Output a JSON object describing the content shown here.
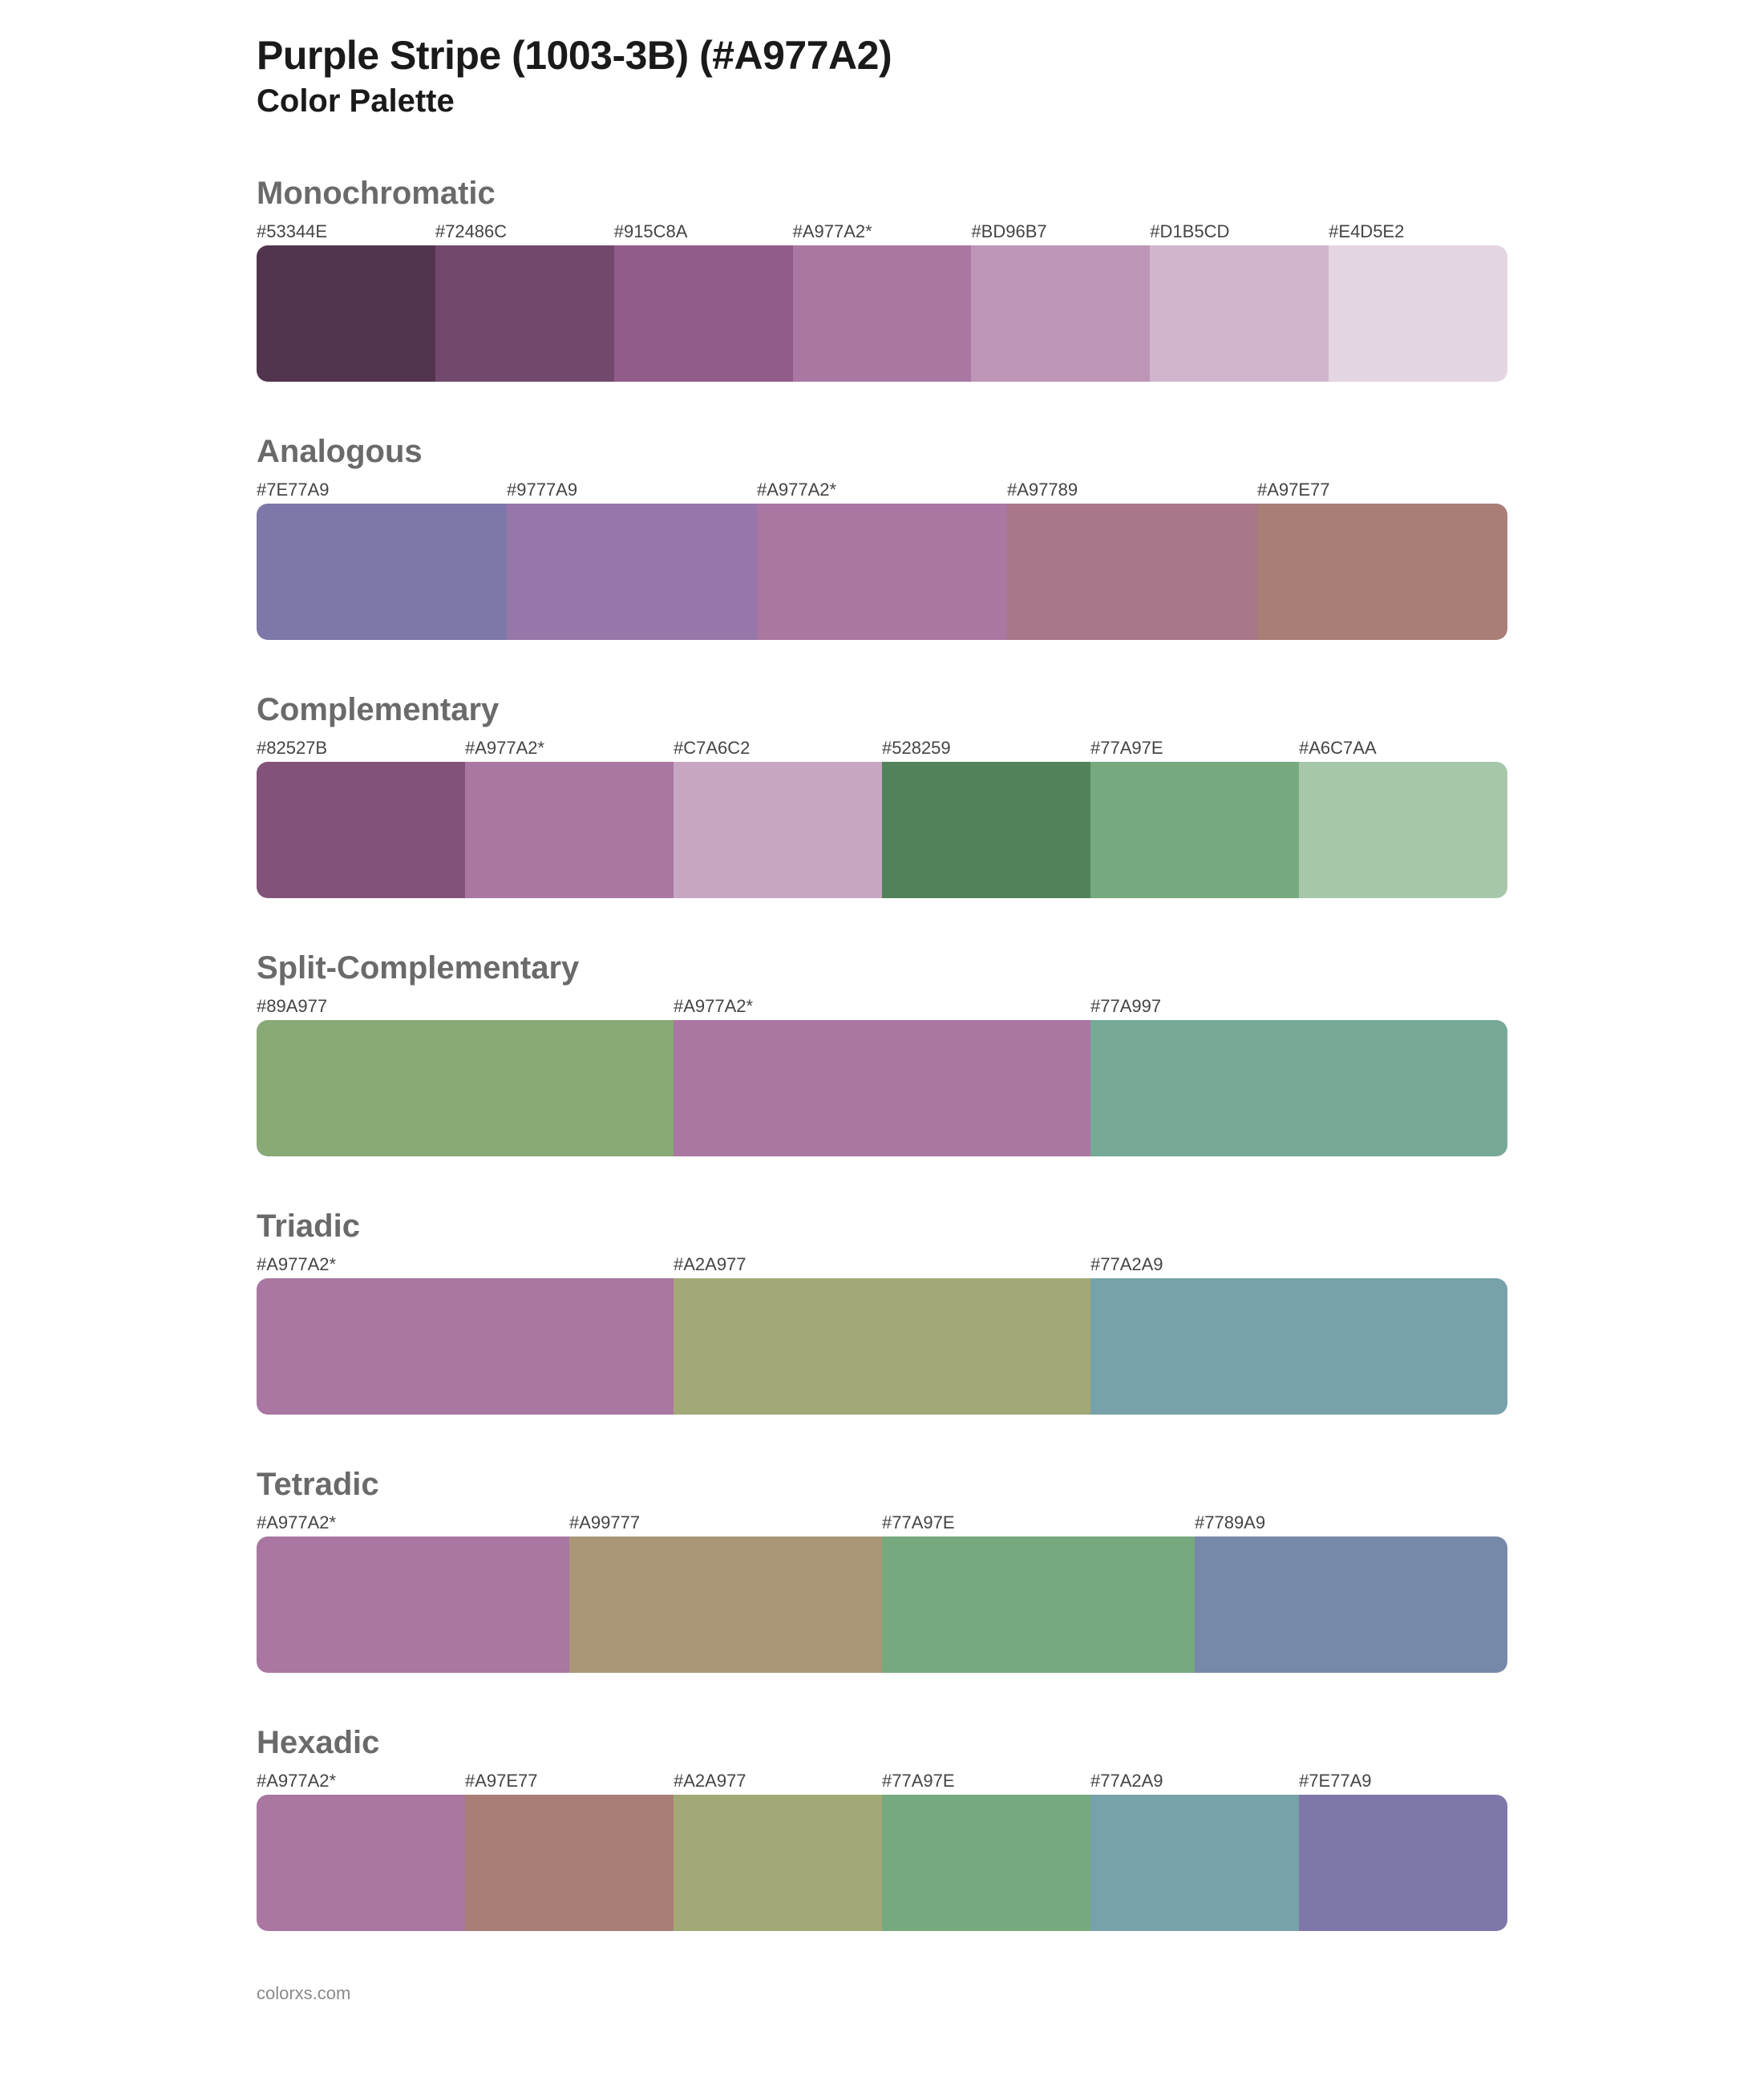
{
  "header": {
    "title": "Purple Stripe (1003-3B) (#A977A2)",
    "subtitle": "Color Palette"
  },
  "sections": [
    {
      "name": "Monochromatic",
      "swatches": [
        {
          "label": "#53344E",
          "color": "#53344E"
        },
        {
          "label": "#72486C",
          "color": "#72486C"
        },
        {
          "label": "#915C8A",
          "color": "#915C8A"
        },
        {
          "label": "#A977A2*",
          "color": "#A977A2"
        },
        {
          "label": "#BD96B7",
          "color": "#BD96B7"
        },
        {
          "label": "#D1B5CD",
          "color": "#D1B5CD"
        },
        {
          "label": "#E4D5E2",
          "color": "#E4D5E2"
        }
      ]
    },
    {
      "name": "Analogous",
      "swatches": [
        {
          "label": "#7E77A9",
          "color": "#7E77A9"
        },
        {
          "label": "#9777A9",
          "color": "#9777A9"
        },
        {
          "label": "#A977A2*",
          "color": "#A977A2"
        },
        {
          "label": "#A97789",
          "color": "#A97789"
        },
        {
          "label": "#A97E77",
          "color": "#A97E77"
        }
      ]
    },
    {
      "name": "Complementary",
      "swatches": [
        {
          "label": "#82527B",
          "color": "#82527B"
        },
        {
          "label": "#A977A2*",
          "color": "#A977A2"
        },
        {
          "label": "#C7A6C2",
          "color": "#C7A6C2"
        },
        {
          "label": "#528259",
          "color": "#528259"
        },
        {
          "label": "#77A97E",
          "color": "#77A97E"
        },
        {
          "label": "#A6C7AA",
          "color": "#A6C7AA"
        }
      ]
    },
    {
      "name": "Split-Complementary",
      "swatches": [
        {
          "label": "#89A977",
          "color": "#89A977"
        },
        {
          "label": "#A977A2*",
          "color": "#A977A2"
        },
        {
          "label": "#77A997",
          "color": "#77A997"
        }
      ]
    },
    {
      "name": "Triadic",
      "swatches": [
        {
          "label": "#A977A2*",
          "color": "#A977A2"
        },
        {
          "label": "#A2A977",
          "color": "#A2A977"
        },
        {
          "label": "#77A2A9",
          "color": "#77A2A9"
        }
      ]
    },
    {
      "name": "Tetradic",
      "swatches": [
        {
          "label": "#A977A2*",
          "color": "#A977A2"
        },
        {
          "label": "#A99777",
          "color": "#A99777"
        },
        {
          "label": "#77A97E",
          "color": "#77A97E"
        },
        {
          "label": "#7789A9",
          "color": "#7789A9"
        }
      ]
    },
    {
      "name": "Hexadic",
      "swatches": [
        {
          "label": "#A977A2*",
          "color": "#A977A2"
        },
        {
          "label": "#A97E77",
          "color": "#A97E77"
        },
        {
          "label": "#A2A977",
          "color": "#A2A977"
        },
        {
          "label": "#77A97E",
          "color": "#77A97E"
        },
        {
          "label": "#77A2A9",
          "color": "#77A2A9"
        },
        {
          "label": "#7E77A9",
          "color": "#7E77A9"
        }
      ]
    }
  ],
  "footer": "colorxs.com",
  "style": {
    "background_color": "#ffffff",
    "title_color": "#1a1a1a",
    "title_fontsize": 50,
    "subtitle_fontsize": 40,
    "section_title_color": "#6a6a6a",
    "section_title_fontsize": 40,
    "label_color": "#444444",
    "label_fontsize": 22,
    "swatch_height": 170,
    "swatch_border_radius": 14,
    "footer_color": "#8a8a8a",
    "footer_fontsize": 22
  }
}
